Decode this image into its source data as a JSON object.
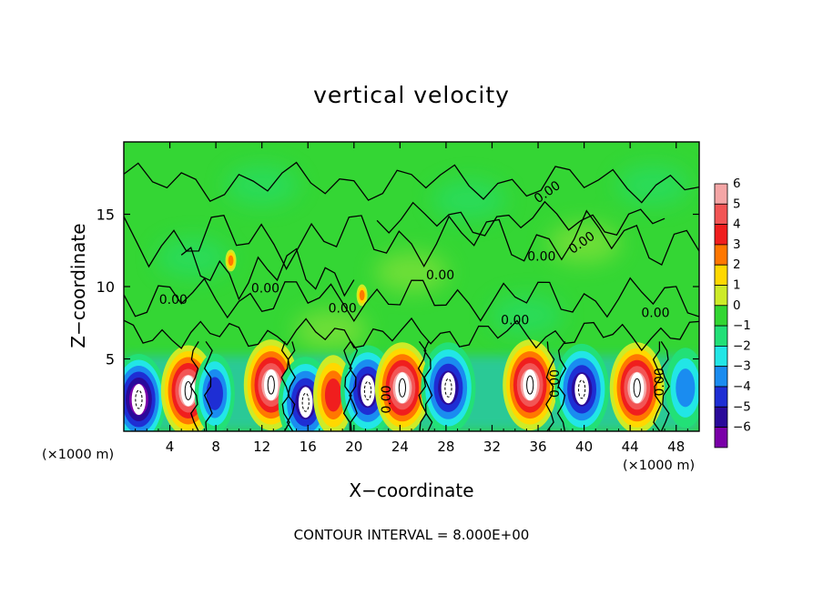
{
  "chart_data": {
    "type": "heatmap",
    "title": "vertical velocity",
    "xlabel": "X−coordinate",
    "ylabel": "Z−coordinate",
    "x_unit_left": "(×1000 m)",
    "x_unit_right": "(×1000 m)",
    "footer": "CONTOUR INTERVAL = 8.000E+00",
    "xlim": [
      0,
      50
    ],
    "ylim": [
      0,
      20
    ],
    "x_ticks": [
      4,
      8,
      12,
      16,
      20,
      24,
      28,
      32,
      36,
      40,
      44,
      48
    ],
    "x_tick_labels": [
      "4",
      "8",
      "12",
      "16",
      "20",
      "24",
      "28",
      "32",
      "36",
      "40",
      "44",
      "48"
    ],
    "y_ticks": [
      5,
      10,
      15
    ],
    "y_tick_labels": [
      "5",
      "10",
      "15"
    ],
    "grid": false,
    "colorbar": {
      "placement": "right",
      "levels": [
        6,
        5,
        4,
        3,
        2,
        1,
        0,
        -1,
        -2,
        -3,
        -4,
        -5,
        -6
      ],
      "labels": [
        "6",
        "5",
        "4",
        "3",
        "2",
        "1",
        "0",
        "−1",
        "−2",
        "−3",
        "−4",
        "−5",
        "−6"
      ],
      "colors": [
        "#f4a6a6",
        "#f25555",
        "#f01e1e",
        "#ff7700",
        "#ffd800",
        "#cdeb28",
        "#32d632",
        "#22e077",
        "#22e6e6",
        "#1a8cf0",
        "#1e2ed4",
        "#2a0a9a",
        "#7a00a8"
      ]
    },
    "background_color": "#34d634",
    "contour_label": "0.00",
    "contour_label_count": 12,
    "cells": [
      {
        "x": 1.3,
        "z": 2.2,
        "w": -6
      },
      {
        "x": 5.6,
        "z": 2.8,
        "w": 6
      },
      {
        "x": 7.9,
        "z": 2.6,
        "w": -4
      },
      {
        "x": 12.8,
        "z": 3.2,
        "w": 6
      },
      {
        "x": 15.8,
        "z": 2.0,
        "w": -5
      },
      {
        "x": 18.2,
        "z": 2.5,
        "w": 4
      },
      {
        "x": 21.2,
        "z": 2.8,
        "w": -5
      },
      {
        "x": 24.2,
        "z": 3.0,
        "w": 6
      },
      {
        "x": 28.2,
        "z": 3.0,
        "w": -5
      },
      {
        "x": 35.3,
        "z": 3.2,
        "w": 6
      },
      {
        "x": 39.8,
        "z": 2.9,
        "w": -5
      },
      {
        "x": 44.6,
        "z": 3.0,
        "w": 6
      },
      {
        "x": 48.8,
        "z": 3.0,
        "w": -3
      },
      {
        "x": 9.3,
        "z": 11.8,
        "w": 3
      },
      {
        "x": 20.7,
        "z": 9.4,
        "w": 3
      }
    ]
  }
}
